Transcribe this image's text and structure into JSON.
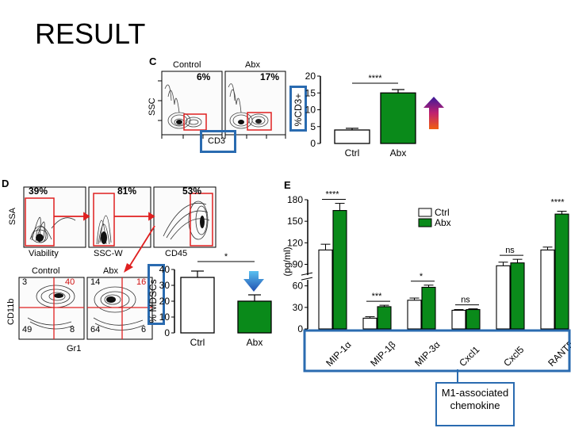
{
  "slide": {
    "title": "RESULT"
  },
  "panel_c": {
    "letter": "C",
    "groups": [
      "Control",
      "Abx"
    ],
    "percents": [
      "6%",
      "17%"
    ],
    "y_axis": "SSC",
    "x_axis": "CD3"
  },
  "panel_d": {
    "letter": "D",
    "gate_percents": [
      "39%",
      "81%",
      "53%"
    ],
    "gate_axes": [
      "SSA",
      "Viability",
      "SSC-W",
      "CD45"
    ],
    "groups": [
      "Control",
      "Abx"
    ],
    "quadrants_control": [
      "3",
      "40",
      "49",
      "8"
    ],
    "quadrants_abx": [
      "14",
      "16",
      "64",
      "6"
    ],
    "y_axis": "CD11b",
    "x_axis": "Gr1"
  },
  "panel_e": {
    "letter": "E"
  },
  "annotations": {
    "note": "M1-associated chemokine"
  },
  "colors": {
    "abx": "#0a8a1a",
    "ctrl": "#ffffff",
    "highlight": "#2a6bb0",
    "quadrant_pos": "#d01010"
  },
  "chart_data": [
    {
      "type": "bar",
      "ylabel": "%CD3+",
      "categories": [
        "Ctrl",
        "Abx"
      ],
      "values": [
        4,
        15
      ],
      "errors": [
        0.5,
        1
      ],
      "significance": "****",
      "yticks": [
        "0",
        "5",
        "10",
        "15",
        "20"
      ],
      "ylim": [
        0,
        20
      ]
    },
    {
      "type": "bar",
      "ylabel": "% MDSCs",
      "categories": [
        "Ctrl",
        "Abx"
      ],
      "values": [
        35,
        20
      ],
      "errors": [
        4,
        4
      ],
      "significance": "*",
      "yticks": [
        "0",
        "10",
        "20",
        "30",
        "40"
      ],
      "ylim": [
        0,
        40
      ]
    },
    {
      "type": "bar",
      "ylabel": "(pg/ml)",
      "categories": [
        "MIP-1α",
        "MIP-1β",
        "MIP-3α",
        "Cxcl1",
        "Cxcl5",
        "RANTES"
      ],
      "series": [
        {
          "name": "Ctrl",
          "values": [
            110,
            15,
            40,
            26,
            88,
            110
          ]
        },
        {
          "name": "Abx",
          "values": [
            165,
            31,
            58,
            27,
            92,
            160
          ]
        }
      ],
      "errors": [
        [
          8,
          10
        ],
        [
          2,
          2
        ],
        [
          3,
          3
        ],
        [
          1,
          1
        ],
        [
          5,
          5
        ],
        [
          4,
          4
        ]
      ],
      "significance": [
        "****",
        "***",
        "*",
        "ns",
        "ns",
        "****"
      ],
      "yticks": [
        "0",
        "30",
        "60",
        "90",
        "120",
        "150",
        "180"
      ],
      "ylim": [
        0,
        180
      ],
      "legend": "top-right"
    }
  ]
}
